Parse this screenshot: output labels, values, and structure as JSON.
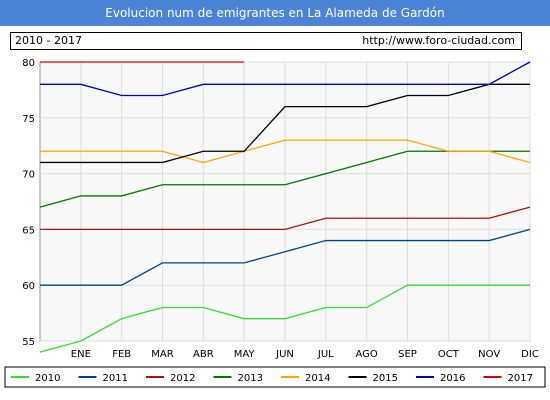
{
  "header": {
    "title": "Evolucion num de emigrantes en La Alameda de Gardón"
  },
  "subheader": {
    "range": "2010 - 2017",
    "url": "http://www.foro-ciudad.com"
  },
  "chart_data": {
    "type": "line",
    "title": "Evolucion num de emigrantes en La Alameda de Gardón",
    "xlabel": "",
    "ylabel": "",
    "categories": [
      "",
      "ENE",
      "FEB",
      "MAR",
      "ABR",
      "MAY",
      "JUN",
      "JUL",
      "AGO",
      "SEP",
      "OCT",
      "NOV",
      "DIC"
    ],
    "ylim": [
      55,
      80
    ],
    "yticks": [
      55,
      60,
      65,
      70,
      75,
      80
    ],
    "grid": true,
    "legend_position": "bottom",
    "series": [
      {
        "name": "2010",
        "color": "#33dd33",
        "values": [
          54,
          55,
          57,
          58,
          58,
          57,
          57,
          58,
          58,
          60,
          60,
          60,
          60
        ]
      },
      {
        "name": "2011",
        "color": "#004488",
        "values": [
          60,
          60,
          60,
          62,
          62,
          62,
          63,
          64,
          64,
          64,
          64,
          64,
          65
        ]
      },
      {
        "name": "2012",
        "color": "#aa1111",
        "values": [
          65,
          65,
          65,
          65,
          65,
          65,
          65,
          66,
          66,
          66,
          66,
          66,
          67
        ]
      },
      {
        "name": "2013",
        "color": "#007700",
        "values": [
          67,
          68,
          68,
          69,
          69,
          69,
          69,
          70,
          71,
          72,
          72,
          72,
          72
        ]
      },
      {
        "name": "2014",
        "color": "#ffa500",
        "values": [
          72,
          72,
          72,
          72,
          71,
          72,
          73,
          73,
          73,
          73,
          72,
          72,
          71
        ]
      },
      {
        "name": "2015",
        "color": "#000000",
        "values": [
          71,
          71,
          71,
          71,
          72,
          72,
          76,
          76,
          76,
          77,
          77,
          78,
          78
        ]
      },
      {
        "name": "2016",
        "color": "#0000cc",
        "values": [
          78,
          78,
          77,
          77,
          78,
          78,
          78,
          78,
          78,
          78,
          78,
          78,
          80
        ]
      },
      {
        "name": "2017",
        "color": "#dd0000",
        "values": [
          80,
          80,
          80,
          80,
          80,
          80,
          null,
          null,
          null,
          null,
          null,
          null,
          null
        ]
      }
    ]
  }
}
